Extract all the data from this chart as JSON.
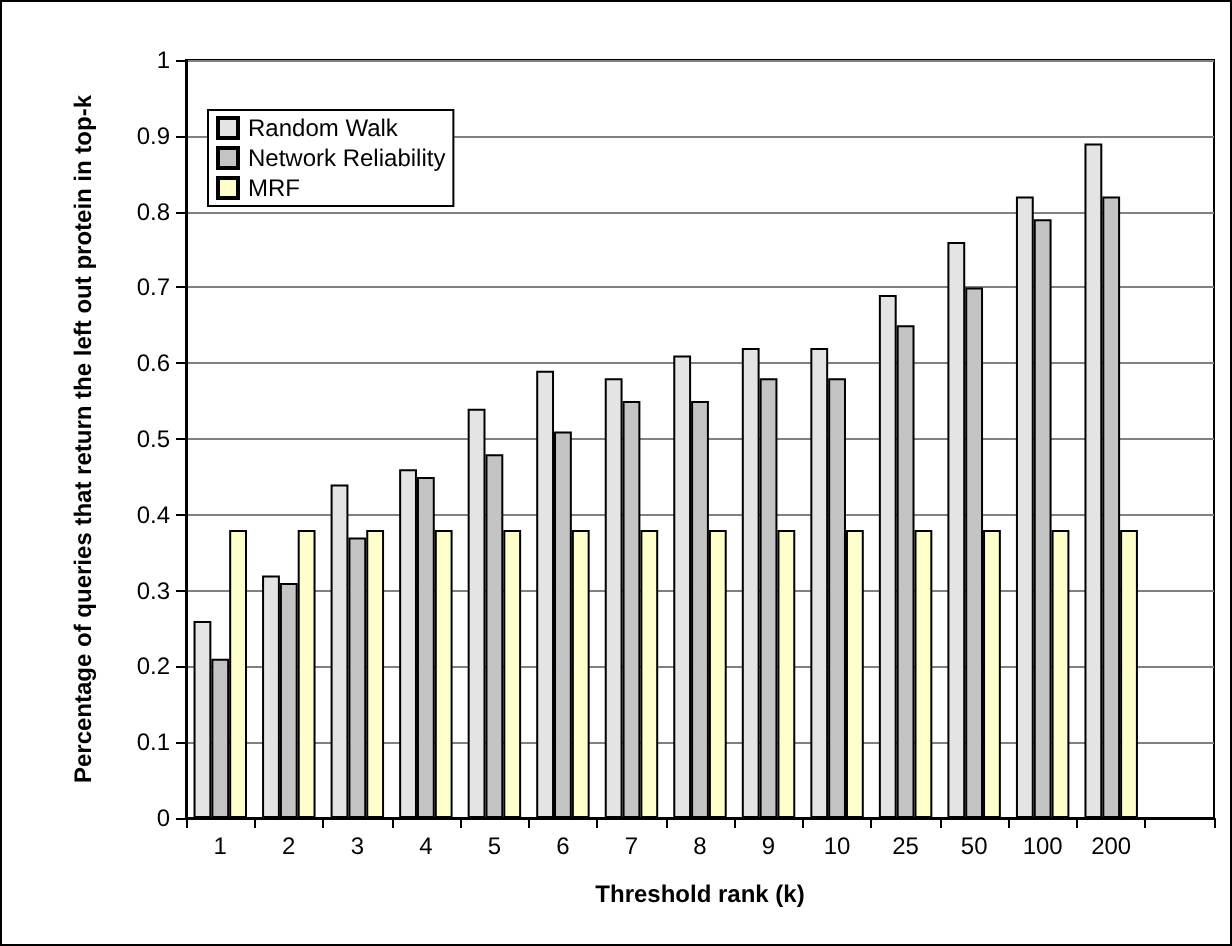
{
  "chart_data": {
    "type": "bar",
    "xlabel": "Threshold rank (k)",
    "ylabel": "Percentage of queries that return the left out protein in top-k",
    "categories": [
      "1",
      "2",
      "3",
      "4",
      "5",
      "6",
      "7",
      "8",
      "9",
      "10",
      "25",
      "50",
      "100",
      "200",
      null
    ],
    "series": [
      {
        "name": "Random Walk",
        "color": "#e4e4e4",
        "values": [
          0.26,
          0.32,
          0.44,
          0.46,
          0.54,
          0.59,
          0.58,
          0.61,
          0.62,
          0.62,
          0.69,
          0.76,
          0.82,
          0.89,
          null
        ]
      },
      {
        "name": "Network Reliability",
        "color": "#c4c4c4",
        "values": [
          0.21,
          0.31,
          0.37,
          0.45,
          0.48,
          0.51,
          0.55,
          0.55,
          0.58,
          0.58,
          0.65,
          0.7,
          0.79,
          0.82,
          null
        ]
      },
      {
        "name": "MRF",
        "color": "#ffffcc",
        "values": [
          0.38,
          0.38,
          0.38,
          0.38,
          0.38,
          0.38,
          0.38,
          0.38,
          0.38,
          0.38,
          0.38,
          0.38,
          0.38,
          0.38,
          null
        ]
      }
    ],
    "ylim": [
      0,
      1
    ],
    "yticks": [
      0,
      0.1,
      0.2,
      0.3,
      0.4,
      0.5,
      0.6,
      0.7,
      0.8,
      0.9,
      1
    ],
    "grid": "y",
    "legend": "top left"
  }
}
